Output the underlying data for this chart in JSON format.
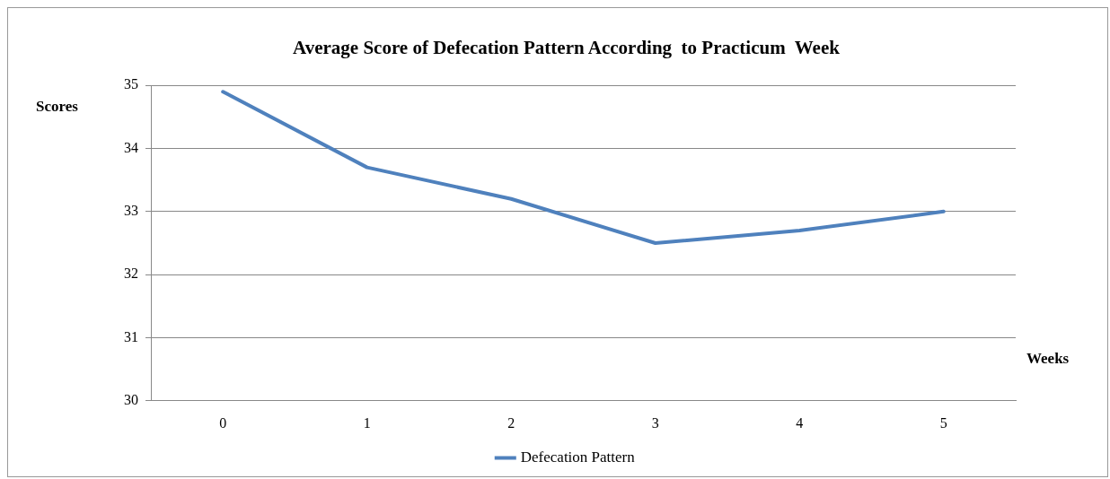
{
  "chart_data": {
    "type": "line",
    "title": "Average Score of Defecation Pattern According  to Practicum  Week",
    "xlabel": "Weeks",
    "ylabel": "Scores",
    "categories": [
      "0",
      "1",
      "2",
      "3",
      "4",
      "5"
    ],
    "series": [
      {
        "name": "Defecation Pattern",
        "color": "#4f81bd",
        "values": [
          34.9,
          33.7,
          33.2,
          32.5,
          32.7,
          33.0
        ]
      }
    ],
    "ylim": [
      30,
      35
    ],
    "yticks": [
      30,
      31,
      32,
      33,
      34,
      35
    ],
    "grid": "y",
    "legend": "bottom",
    "marker": "none",
    "line_style": "solid"
  }
}
